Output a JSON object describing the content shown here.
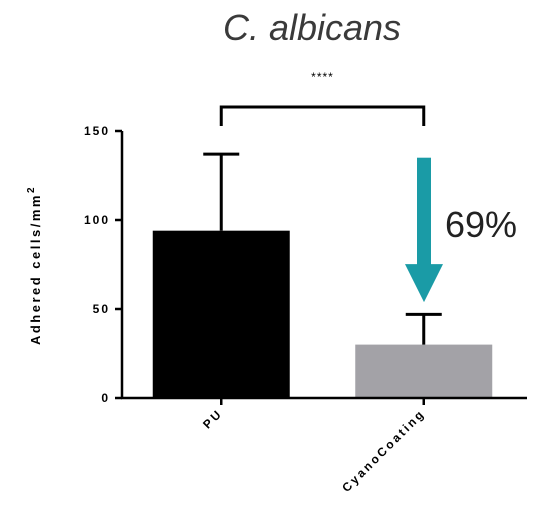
{
  "chart_data": {
    "type": "bar",
    "title": "C. albicans",
    "ylabel": "Adhered cells/mm",
    "ylabel_superscript": "2",
    "xlabel": "",
    "ylim": [
      0,
      150
    ],
    "yticks": [
      0,
      50,
      100,
      150
    ],
    "ytick_labels": [
      "0",
      "50",
      "100",
      "150"
    ],
    "categories": [
      "PU",
      "CyanoCoating"
    ],
    "values": [
      94,
      30
    ],
    "errors": [
      43,
      17
    ],
    "bar_colors": [
      "#000000",
      "#a3a2a7"
    ],
    "significance": "****",
    "annotation": {
      "text": "69%",
      "arrow_color": "#1a9ba6",
      "arrow_from_value": 135,
      "arrow_to_value": 55
    },
    "grid": false
  }
}
